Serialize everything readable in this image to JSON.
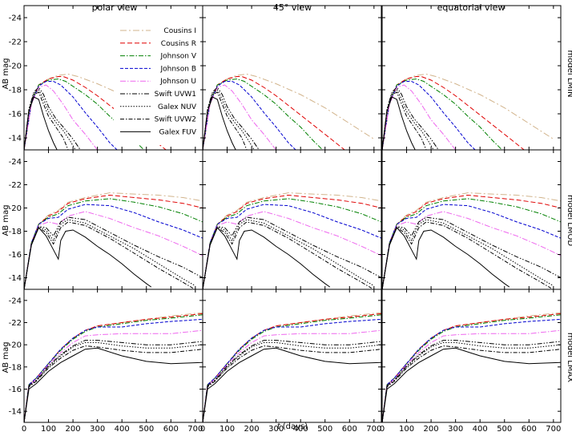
{
  "chart_data": {
    "type": "line",
    "column_titles": [
      "polar view",
      "45° view",
      "equatorial view"
    ],
    "row_labels": [
      "model LMIN",
      "model LMOD",
      "model LMAX"
    ],
    "ylabel": "AB mag",
    "xlabel_italic": "t",
    "xlabel_rest": "(days)",
    "xlim": [
      0,
      730
    ],
    "x_ticks": [
      "0",
      "100",
      "200",
      "300",
      "400",
      "500",
      "600",
      "700"
    ],
    "x_tick_values": [
      0,
      100,
      200,
      300,
      400,
      500,
      600,
      700
    ],
    "ylims": [
      [
        -13,
        -25
      ],
      [
        -13,
        -25
      ],
      [
        -13,
        -25
      ]
    ],
    "y_ticks": [
      [
        "-14",
        "-16",
        "-18",
        "-20",
        "-22",
        "-24"
      ],
      [
        "-14",
        "-16",
        "-18",
        "-20",
        "-22",
        "-24"
      ],
      [
        "-14",
        "-16",
        "-18",
        "-20",
        "-22",
        "-24"
      ]
    ],
    "y_tick_values": [
      -14,
      -16,
      -18,
      -20,
      -22,
      -24
    ],
    "legend": {
      "location": "top-left of first panel",
      "entries": [
        "Cousins I",
        "Cousins R",
        "Johnson V",
        "Johnson B",
        "Johnson U",
        "Swift UVW1",
        "Galex NUV",
        "Swift UVW2",
        "Galex FUV"
      ]
    },
    "series_styles": [
      {
        "name": "Cousins I",
        "color": "#d2b48c",
        "dash": "8,3,2,3"
      },
      {
        "name": "Cousins R",
        "color": "#e00000",
        "dash": "6,3"
      },
      {
        "name": "Johnson V",
        "color": "#008000",
        "dash": "6,2,1.5,2"
      },
      {
        "name": "Johnson B",
        "color": "#0000d0",
        "dash": "4,2"
      },
      {
        "name": "Johnson U",
        "color": "#ee66ee",
        "dash": "7,2,1.5,2"
      },
      {
        "name": "Swift UVW1",
        "color": "#000000",
        "dash": "6,2,1.5,2,1.5,2"
      },
      {
        "name": "Galex NUV",
        "color": "#000000",
        "dash": "1.5,1.8"
      },
      {
        "name": "Swift UVW2",
        "color": "#000000",
        "dash": "5,2,1.5,2"
      },
      {
        "name": "Galex FUV",
        "color": "#000000",
        "dash": ""
      }
    ],
    "panels": [
      {
        "row": 0,
        "views": [
          "polar",
          "45",
          "equatorial"
        ],
        "series": [
          {
            "name": "Cousins I",
            "x": [
              0,
              30,
              60,
              100,
              140,
              180,
              220,
              300,
              400,
              500,
              600,
              700
            ],
            "y": [
              -13,
              -16.8,
              -18.4,
              -18.9,
              -19.2,
              -19.3,
              -19.1,
              -18.5,
              -17.6,
              -16.5,
              -15.2,
              -13.9
            ]
          },
          {
            "name": "Cousins R",
            "x": [
              0,
              30,
              60,
              100,
              140,
              160,
              200,
              250,
              300,
              400,
              500,
              580
            ],
            "y": [
              -13,
              -16.9,
              -18.4,
              -18.9,
              -19.1,
              -19.1,
              -18.8,
              -18.2,
              -17.5,
              -15.9,
              -14.3,
              -13
            ]
          },
          {
            "name": "Johnson V",
            "x": [
              0,
              30,
              60,
              100,
              140,
              170,
              250,
              300,
              350,
              400,
              450,
              490
            ],
            "y": [
              -13,
              -16.9,
              -18.4,
              -18.8,
              -18.9,
              -18.7,
              -17.6,
              -16.8,
              -15.8,
              -14.9,
              -13.8,
              -13
            ]
          },
          {
            "name": "Johnson B",
            "x": [
              0,
              30,
              60,
              90,
              120,
              150,
              200,
              250,
              300,
              350,
              380
            ],
            "y": [
              -13,
              -16.9,
              -18.3,
              -18.7,
              -18.7,
              -18.4,
              -17.4,
              -16.1,
              -14.9,
              -13.6,
              -13
            ]
          },
          {
            "name": "Johnson U",
            "x": [
              0,
              30,
              60,
              90,
              120,
              160,
              200,
              250,
              300
            ],
            "y": [
              -13,
              -16.8,
              -18.2,
              -18.4,
              -17.9,
              -16.8,
              -15.5,
              -14.3,
              -13
            ]
          },
          {
            "name": "Swift UVW1",
            "x": [
              0,
              20,
              40,
              60,
              80,
              100,
              130,
              160,
              200,
              230
            ],
            "y": [
              -13,
              -16.4,
              -17.8,
              -18.2,
              -17.6,
              -16.6,
              -15.6,
              -14.9,
              -13.9,
              -13
            ]
          },
          {
            "name": "Galex NUV",
            "x": [
              0,
              20,
              40,
              60,
              80,
              100,
              130,
              160,
              190,
              210
            ],
            "y": [
              -13,
              -16.4,
              -17.7,
              -18.0,
              -17.2,
              -16.2,
              -15.3,
              -14.6,
              -13.7,
              -13
            ]
          },
          {
            "name": "Swift UVW2",
            "x": [
              0,
              20,
              40,
              60,
              80,
              100,
              130,
              160,
              180
            ],
            "y": [
              -13,
              -16.3,
              -17.6,
              -17.8,
              -16.8,
              -15.8,
              -14.9,
              -14.0,
              -13
            ]
          },
          {
            "name": "Galex FUV",
            "x": [
              0,
              20,
              40,
              60,
              80,
              100,
              120,
              135
            ],
            "y": [
              -13,
              -16.2,
              -17.4,
              -17.2,
              -15.8,
              -14.6,
              -13.6,
              -13
            ]
          }
        ]
      },
      {
        "row": 1,
        "views": [
          "polar",
          "45",
          "equatorial"
        ],
        "series": [
          {
            "name": "Cousins I",
            "x": [
              0,
              30,
              60,
              100,
              140,
              180,
              250,
              350,
              450,
              550,
              650,
              730
            ],
            "y": [
              -13,
              -17,
              -18.6,
              -19.4,
              -19.8,
              -20.5,
              -20.9,
              -21.3,
              -21.2,
              -21.1,
              -20.9,
              -20.6
            ]
          },
          {
            "name": "Cousins R",
            "x": [
              0,
              30,
              60,
              100,
              140,
              180,
              250,
              350,
              450,
              550,
              650,
              730
            ],
            "y": [
              -13,
              -17,
              -18.6,
              -19.3,
              -19.7,
              -20.4,
              -20.8,
              -21.1,
              -20.9,
              -20.7,
              -20.4,
              -20.0
            ]
          },
          {
            "name": "Johnson V",
            "x": [
              0,
              30,
              60,
              100,
              140,
              180,
              250,
              350,
              450,
              550,
              650,
              730
            ],
            "y": [
              -13,
              -17,
              -18.6,
              -19.2,
              -19.5,
              -20.2,
              -20.6,
              -20.8,
              -20.5,
              -20.1,
              -19.5,
              -18.8
            ]
          },
          {
            "name": "Johnson B",
            "x": [
              0,
              30,
              60,
              100,
              140,
              180,
              250,
              350,
              450,
              550,
              650,
              730
            ],
            "y": [
              -13,
              -17,
              -18.6,
              -19.1,
              -19.2,
              -19.9,
              -20.3,
              -20.2,
              -19.6,
              -18.8,
              -18.1,
              -17.4
            ]
          },
          {
            "name": "Johnson U",
            "x": [
              0,
              30,
              60,
              100,
              140,
              180,
              250,
              350,
              450,
              550,
              650,
              730
            ],
            "y": [
              -13,
              -16.9,
              -18.5,
              -18.8,
              -18.6,
              -19.3,
              -19.7,
              -19.1,
              -18.3,
              -17.6,
              -16.7,
              -15.9
            ]
          },
          {
            "name": "Swift UVW1",
            "x": [
              0,
              30,
              60,
              90,
              120,
              150,
              180,
              250,
              350,
              450,
              550,
              650,
              730
            ],
            "y": [
              -13,
              -16.9,
              -18.4,
              -18.3,
              -17.6,
              -18.8,
              -19.2,
              -19.0,
              -17.9,
              -16.8,
              -15.8,
              -14.9,
              -14.0
            ]
          },
          {
            "name": "Galex NUV",
            "x": [
              0,
              30,
              60,
              90,
              120,
              150,
              180,
              250,
              350,
              450,
              550,
              650,
              700
            ],
            "y": [
              -13,
              -16.9,
              -18.4,
              -18.1,
              -17.2,
              -18.6,
              -19.0,
              -18.7,
              -17.6,
              -16.5,
              -15.2,
              -13.9,
              -13.3
            ]
          },
          {
            "name": "Swift UVW2",
            "x": [
              0,
              30,
              60,
              90,
              120,
              150,
              180,
              250,
              350,
              450,
              550,
              650,
              690
            ],
            "y": [
              -13,
              -16.9,
              -18.3,
              -17.9,
              -16.9,
              -18.3,
              -18.8,
              -18.5,
              -17.4,
              -16.1,
              -14.8,
              -13.6,
              -13.1
            ]
          },
          {
            "name": "Galex FUV",
            "x": [
              0,
              30,
              60,
              90,
              120,
              140,
              150,
              170,
              200,
              250,
              300,
              350,
              400,
              450,
              500,
              520
            ],
            "y": [
              -13,
              -16.8,
              -18.3,
              -17.6,
              -16.4,
              -15.6,
              -17.2,
              -18.0,
              -18.1,
              -17.5,
              -16.7,
              -16.0,
              -15.2,
              -14.3,
              -13.5,
              -13.2
            ]
          }
        ]
      },
      {
        "row": 2,
        "views": [
          "polar",
          "45",
          "equatorial"
        ],
        "series": [
          {
            "name": "Cousins I",
            "x": [
              0,
              20,
              50,
              100,
              150,
              200,
              250,
              300,
              400,
              500,
              600,
              730
            ],
            "y": [
              -13,
              -16.4,
              -17.0,
              -18.3,
              -19.6,
              -20.6,
              -21.3,
              -21.7,
              -22.0,
              -22.3,
              -22.6,
              -22.9
            ]
          },
          {
            "name": "Cousins R",
            "x": [
              0,
              20,
              50,
              100,
              150,
              200,
              250,
              300,
              400,
              500,
              600,
              730
            ],
            "y": [
              -13,
              -16.4,
              -17.0,
              -18.3,
              -19.6,
              -20.6,
              -21.3,
              -21.7,
              -22.0,
              -22.3,
              -22.5,
              -22.8
            ]
          },
          {
            "name": "Johnson V",
            "x": [
              0,
              20,
              50,
              100,
              150,
              200,
              250,
              300,
              400,
              500,
              600,
              730
            ],
            "y": [
              -13,
              -16.4,
              -17.0,
              -18.3,
              -19.5,
              -20.5,
              -21.2,
              -21.6,
              -21.9,
              -22.2,
              -22.4,
              -22.7
            ]
          },
          {
            "name": "Johnson B",
            "x": [
              0,
              20,
              50,
              100,
              150,
              200,
              250,
              300,
              400,
              500,
              600,
              730
            ],
            "y": [
              -13,
              -16.4,
              -17.0,
              -18.3,
              -19.6,
              -20.6,
              -21.3,
              -21.6,
              -21.6,
              -21.9,
              -22.1,
              -22.3
            ]
          },
          {
            "name": "Johnson U",
            "x": [
              0,
              20,
              50,
              100,
              150,
              200,
              250,
              300,
              400,
              500,
              600,
              730
            ],
            "y": [
              -13,
              -16.3,
              -16.9,
              -18.2,
              -19.3,
              -20.2,
              -20.8,
              -20.9,
              -21.0,
              -21.0,
              -21.0,
              -21.3
            ]
          },
          {
            "name": "Swift UVW1",
            "x": [
              0,
              20,
              50,
              100,
              150,
              200,
              250,
              300,
              400,
              500,
              600,
              730
            ],
            "y": [
              -13,
              -16.3,
              -16.8,
              -18.1,
              -19.1,
              -19.9,
              -20.4,
              -20.4,
              -20.2,
              -20.0,
              -20.0,
              -20.3
            ]
          },
          {
            "name": "Galex NUV",
            "x": [
              0,
              20,
              50,
              100,
              150,
              200,
              250,
              300,
              400,
              500,
              600,
              730
            ],
            "y": [
              -13,
              -16.3,
              -16.8,
              -18.0,
              -19.0,
              -19.8,
              -20.2,
              -20.2,
              -19.9,
              -19.7,
              -19.7,
              -20.0
            ]
          },
          {
            "name": "Swift UVW2",
            "x": [
              0,
              20,
              50,
              100,
              150,
              200,
              250,
              300,
              400,
              500,
              600,
              730
            ],
            "y": [
              -13,
              -16.2,
              -16.7,
              -17.9,
              -18.8,
              -19.5,
              -19.9,
              -19.8,
              -19.5,
              -19.3,
              -19.3,
              -19.6
            ]
          },
          {
            "name": "Galex FUV",
            "x": [
              0,
              20,
              50,
              100,
              150,
              200,
              250,
              300,
              400,
              500,
              600,
              730
            ],
            "y": [
              -13,
              -16.0,
              -16.5,
              -17.6,
              -18.4,
              -19.0,
              -19.6,
              -19.7,
              -19.0,
              -18.5,
              -18.3,
              -18.4
            ]
          }
        ]
      }
    ]
  }
}
